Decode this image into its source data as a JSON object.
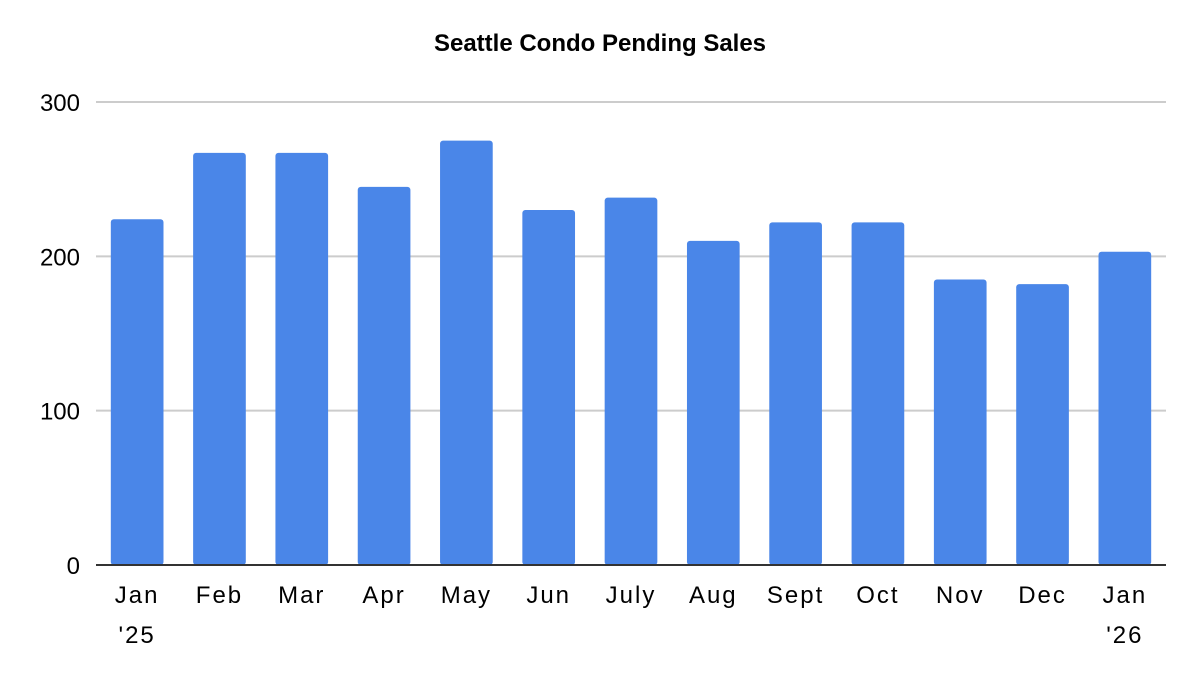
{
  "chart_data": {
    "type": "bar",
    "title": "Seattle Condo Pending Sales",
    "xlabel": "",
    "ylabel": "",
    "categories": [
      [
        "Jan",
        "'25"
      ],
      [
        "Feb"
      ],
      [
        "Mar"
      ],
      [
        "Apr"
      ],
      [
        "May"
      ],
      [
        "Jun"
      ],
      [
        "July"
      ],
      [
        "Aug"
      ],
      [
        "Sept"
      ],
      [
        "Oct"
      ],
      [
        "Nov"
      ],
      [
        "Dec"
      ],
      [
        "Jan",
        "'26"
      ]
    ],
    "values": [
      224,
      267,
      267,
      245,
      275,
      230,
      238,
      210,
      222,
      222,
      185,
      182,
      203
    ],
    "ylim": [
      0,
      300
    ],
    "yticks": [
      "0",
      "100",
      "200",
      "300"
    ],
    "grid": true,
    "legend": "none",
    "bar_color": "#4a86e8",
    "grid_color": "#cccccc",
    "axis_color": "#333333"
  }
}
